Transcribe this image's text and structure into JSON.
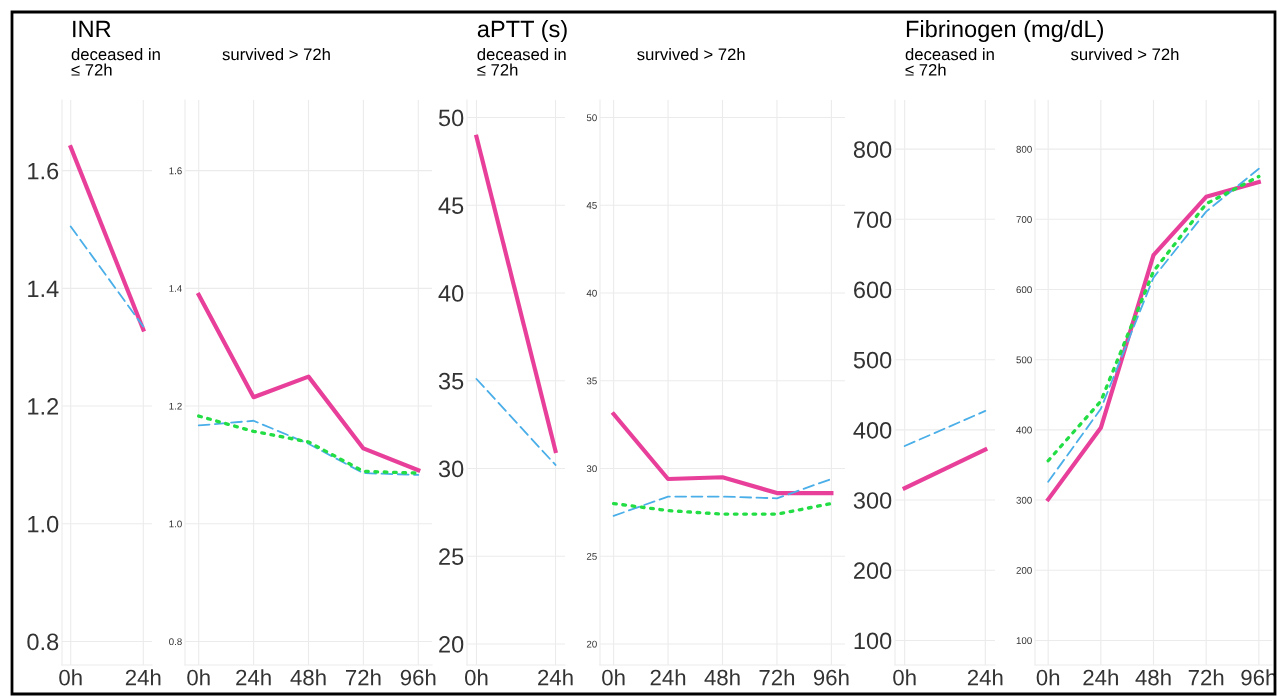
{
  "chart_data": [
    {
      "type": "line",
      "title": "INR",
      "subtitle": "deceased in\n≤ 72h",
      "categories": [
        "0h",
        "24h"
      ],
      "ylim": [
        0.76,
        1.72
      ],
      "yticks": [
        0.8,
        {
          "value": 1.0,
          "label": "1.0"
        },
        1.2,
        1.4,
        1.6
      ],
      "grid": true,
      "series": [
        {
          "color": "#e8409a",
          "line_style": "solid",
          "values": [
            1.64,
            1.33
          ]
        },
        {
          "color": "#4aaee8",
          "line_style": "dashed",
          "values": [
            1.505,
            1.335
          ]
        }
      ]
    },
    {
      "type": "line",
      "subtitle": "survived > 72h",
      "categories": [
        "0h",
        "24h",
        "48h",
        "72h",
        "96h"
      ],
      "ylim": [
        0.76,
        1.72
      ],
      "yticks": [
        0.8,
        {
          "value": 1.0,
          "label": "1.0"
        },
        1.2,
        1.4,
        1.6
      ],
      "grid": true,
      "series": [
        {
          "color": "#e8409a",
          "line_style": "solid",
          "values": [
            1.389,
            1.215,
            1.25,
            1.128,
            1.091
          ]
        },
        {
          "color": "#4aaee8",
          "line_style": "dashed",
          "values": [
            1.167,
            1.175,
            1.136,
            1.086,
            1.083
          ]
        },
        {
          "color": "#22dd44",
          "line_style": "dotted",
          "values": [
            1.183,
            1.157,
            1.139,
            1.089,
            1.086
          ]
        }
      ]
    },
    {
      "type": "line",
      "title": "aPTT (s)",
      "subtitle": "deceased in\n≤ 72h",
      "categories": [
        "0h",
        "24h"
      ],
      "ylim": [
        18.8,
        51
      ],
      "yticks": [
        20,
        25,
        30,
        35,
        40,
        45,
        50
      ],
      "grid": true,
      "series": [
        {
          "color": "#e8409a",
          "line_style": "solid",
          "values": [
            48.9,
            31.0
          ]
        },
        {
          "color": "#4aaee8",
          "line_style": "dashed",
          "values": [
            35.1,
            30.2
          ]
        }
      ]
    },
    {
      "type": "line",
      "subtitle": "survived > 72h",
      "categories": [
        "0h",
        "24h",
        "48h",
        "72h",
        "96h"
      ],
      "ylim": [
        18.8,
        51
      ],
      "yticks": [
        20,
        25,
        30,
        35,
        40,
        45,
        50
      ],
      "grid": true,
      "series": [
        {
          "color": "#e8409a",
          "line_style": "solid",
          "values": [
            33.1,
            29.4,
            29.5,
            28.6,
            28.6
          ]
        },
        {
          "color": "#4aaee8",
          "line_style": "dashed",
          "values": [
            27.3,
            28.4,
            28.4,
            28.3,
            29.4
          ]
        },
        {
          "color": "#22dd44",
          "line_style": "dotted",
          "values": [
            28.0,
            27.6,
            27.4,
            27.4,
            28.0
          ]
        }
      ]
    },
    {
      "type": "line",
      "title": "Fibrinogen (mg/dL)",
      "subtitle": "deceased in\n≤ 72h",
      "categories": [
        "0h",
        "24h"
      ],
      "ylim": [
        65,
        870
      ],
      "yticks": [
        100,
        200,
        300,
        400,
        500,
        600,
        700,
        800
      ],
      "grid": true,
      "series": [
        {
          "color": "#e8409a",
          "line_style": "solid",
          "values": [
            317,
            372
          ]
        },
        {
          "color": "#4aaee8",
          "line_style": "dashed",
          "values": [
            377,
            427
          ]
        }
      ]
    },
    {
      "type": "line",
      "subtitle": "survived > 72h",
      "categories": [
        "0h",
        "24h",
        "48h",
        "72h",
        "96h"
      ],
      "ylim": [
        65,
        870
      ],
      "yticks": [
        100,
        200,
        300,
        400,
        500,
        600,
        700,
        800
      ],
      "grid": true,
      "series": [
        {
          "color": "#e8409a",
          "line_style": "solid",
          "values": [
            301,
            403,
            649,
            732,
            753
          ]
        },
        {
          "color": "#4aaee8",
          "line_style": "dashed",
          "values": [
            326,
            430,
            617,
            711,
            772
          ]
        },
        {
          "color": "#22dd44",
          "line_style": "dotted",
          "values": [
            356,
            441,
            626,
            722,
            761
          ]
        }
      ]
    }
  ]
}
